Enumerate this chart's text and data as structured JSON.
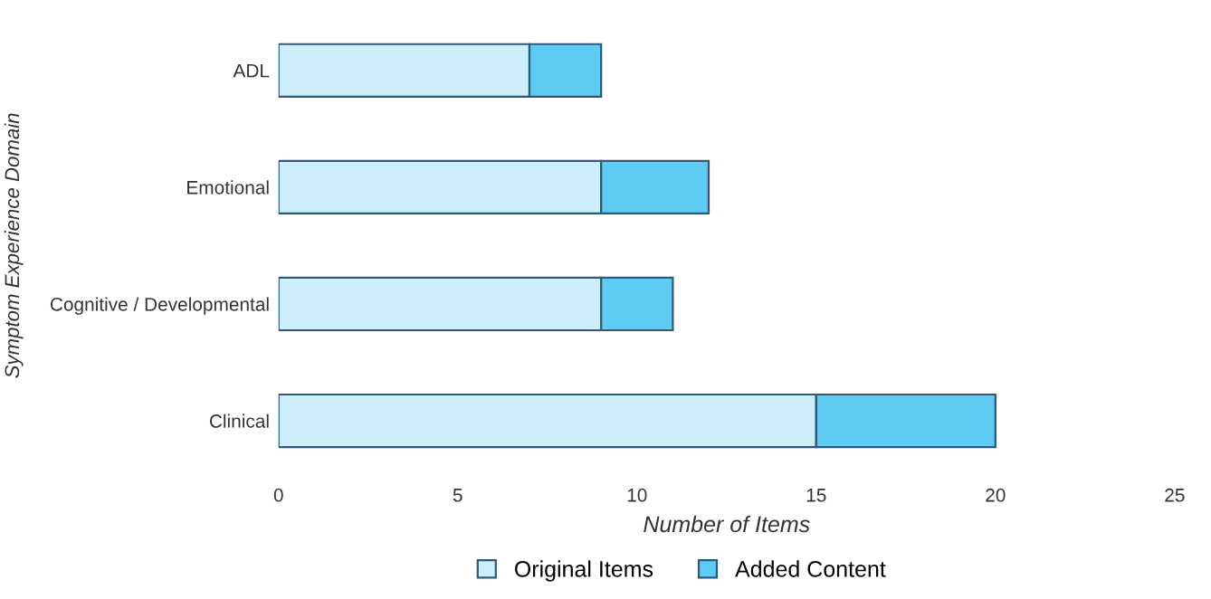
{
  "chart_data": {
    "type": "bar",
    "orientation": "horizontal",
    "stacked": true,
    "xlabel": "Number of Items",
    "ylabel": "Symptom Experience Domain",
    "categories": [
      "ADL",
      "Emotional",
      "Cognitive / Developmental",
      "Clinical"
    ],
    "series": [
      {
        "name": "Original Items",
        "color": "#cdeefb",
        "values": [
          7,
          9,
          9,
          15
        ]
      },
      {
        "name": "Added Content",
        "color": "#5fcaf2",
        "values": [
          2,
          3,
          2,
          5
        ]
      }
    ],
    "xlim": [
      0,
      25
    ],
    "xticks": [
      0,
      5,
      10,
      15,
      20,
      25
    ],
    "grid": false,
    "legend": "bottom"
  }
}
